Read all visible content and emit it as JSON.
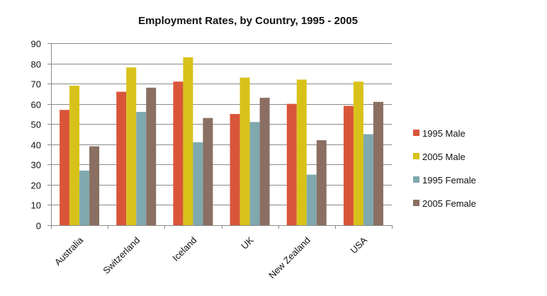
{
  "chart_data": {
    "type": "bar",
    "title": "Employment Rates, by Country, 1995  - 2005",
    "xlabel": "",
    "ylabel": "",
    "ylim": [
      0,
      90
    ],
    "yticks": [
      0,
      10,
      20,
      30,
      40,
      50,
      60,
      70,
      80,
      90
    ],
    "grid": true,
    "legend_position": "right",
    "categories": [
      "Australia",
      "Switzerland",
      "Iceland",
      "UK",
      "New Zealand",
      "USA"
    ],
    "series": [
      {
        "name": "1995 Male",
        "color": "#d9553a",
        "values": [
          57,
          66,
          71,
          55,
          60,
          59
        ]
      },
      {
        "name": "2005 Male",
        "color": "#d8c21a",
        "values": [
          69,
          78,
          83,
          73,
          72,
          71
        ]
      },
      {
        "name": "1995 Female",
        "color": "#7fa9ae",
        "values": [
          27,
          56,
          41,
          51,
          25,
          45
        ]
      },
      {
        "name": "2005 Female",
        "color": "#8a6f62",
        "values": [
          39,
          68,
          53,
          63,
          42,
          61
        ]
      }
    ]
  }
}
